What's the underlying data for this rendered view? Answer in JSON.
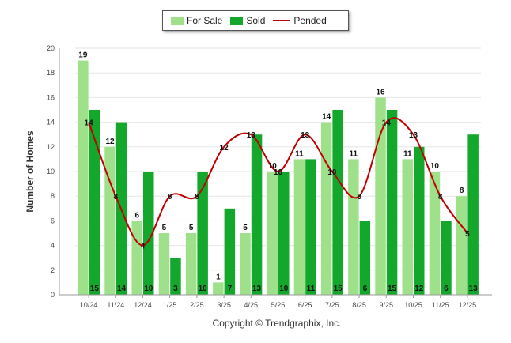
{
  "chart_data": {
    "type": "bar",
    "title": "",
    "xlabel": "",
    "ylabel": "Number of Homes",
    "ylim": [
      0,
      20
    ],
    "yticks": [
      0,
      2,
      4,
      6,
      8,
      10,
      12,
      14,
      16,
      18,
      20
    ],
    "categories": [
      "10/24",
      "11/24",
      "12/24",
      "1/25",
      "2/25",
      "3/25",
      "4/25",
      "5/25",
      "6/25",
      "7/25",
      "8/25",
      "9/25",
      "10/25",
      "11/25",
      "12/25"
    ],
    "series": [
      {
        "name": "For Sale",
        "kind": "bar",
        "color": "#9fe08a",
        "values": [
          19,
          12,
          6,
          5,
          5,
          1,
          5,
          10,
          11,
          14,
          11,
          16,
          11,
          10,
          8
        ]
      },
      {
        "name": "Sold",
        "kind": "bar",
        "color": "#13a82b",
        "values": [
          15,
          14,
          10,
          3,
          10,
          7,
          13,
          10,
          11,
          15,
          6,
          15,
          12,
          6,
          13
        ]
      },
      {
        "name": "Pended",
        "kind": "line",
        "color": "#c00000",
        "values": [
          14,
          8,
          4,
          8,
          8,
          12,
          13,
          10,
          13,
          10,
          8,
          14,
          13,
          8,
          5
        ]
      }
    ],
    "legend": "top-center",
    "grid": true
  },
  "footer": {
    "copyright": "Copyright © Trendgraphix, Inc."
  }
}
